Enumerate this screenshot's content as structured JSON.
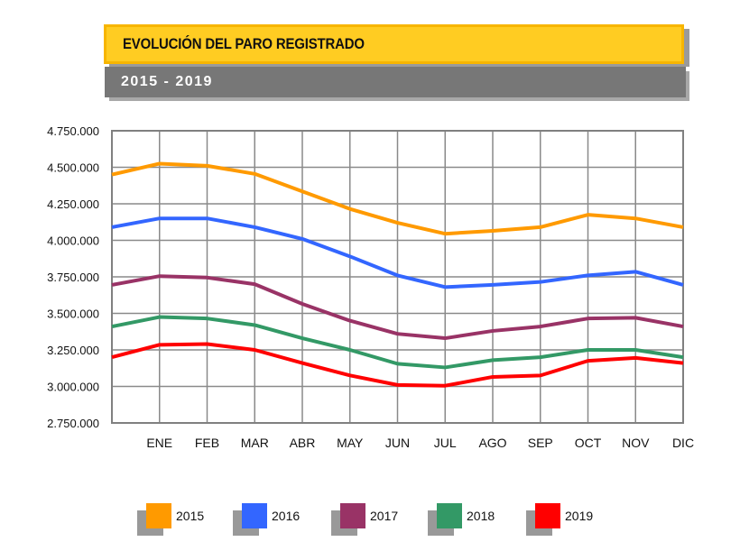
{
  "header": {
    "title": "EVOLUCIÓN DEL PARO REGISTRADO",
    "subtitle": "2015 - 2019"
  },
  "chart_data": {
    "type": "line",
    "title": "EVOLUCIÓN DEL PARO REGISTRADO",
    "subtitle": "2015 - 2019",
    "categories": [
      "",
      "ENE",
      "FEB",
      "MAR",
      "ABR",
      "MAY",
      "JUN",
      "JUL",
      "AGO",
      "SEP",
      "OCT",
      "NOV",
      "DIC"
    ],
    "ylim": [
      2750000,
      4750000
    ],
    "yticks": [
      2750000,
      3000000,
      3250000,
      3500000,
      3750000,
      4000000,
      4250000,
      4500000,
      4750000
    ],
    "ytick_labels": [
      "2.750.000",
      "3.000.000",
      "3.250.000",
      "3.500.000",
      "3.750.000",
      "4.000.000",
      "4.250.000",
      "4.500.000",
      "4.750.000"
    ],
    "grid": true,
    "legend": "bottom",
    "series": [
      {
        "name": "2015",
        "color": "#ff9a00",
        "values": [
          4450000,
          4525000,
          4510000,
          4455000,
          4335000,
          4215000,
          4120000,
          4045000,
          4065000,
          4090000,
          4175000,
          4150000,
          4090000
        ]
      },
      {
        "name": "2016",
        "color": "#3366ff",
        "values": [
          4090000,
          4150000,
          4150000,
          4090000,
          4010000,
          3890000,
          3760000,
          3680000,
          3695000,
          3715000,
          3760000,
          3785000,
          3695000
        ]
      },
      {
        "name": "2017",
        "color": "#993366",
        "values": [
          3695000,
          3755000,
          3745000,
          3700000,
          3565000,
          3450000,
          3360000,
          3330000,
          3380000,
          3410000,
          3465000,
          3470000,
          3410000
        ]
      },
      {
        "name": "2018",
        "color": "#339966",
        "values": [
          3410000,
          3475000,
          3465000,
          3420000,
          3330000,
          3250000,
          3155000,
          3130000,
          3180000,
          3200000,
          3250000,
          3250000,
          3200000
        ]
      },
      {
        "name": "2019",
        "color": "#ff0000",
        "values": [
          3200000,
          3285000,
          3290000,
          3250000,
          3160000,
          3075000,
          3010000,
          3005000,
          3065000,
          3075000,
          3175000,
          3195000,
          3160000
        ]
      }
    ]
  }
}
